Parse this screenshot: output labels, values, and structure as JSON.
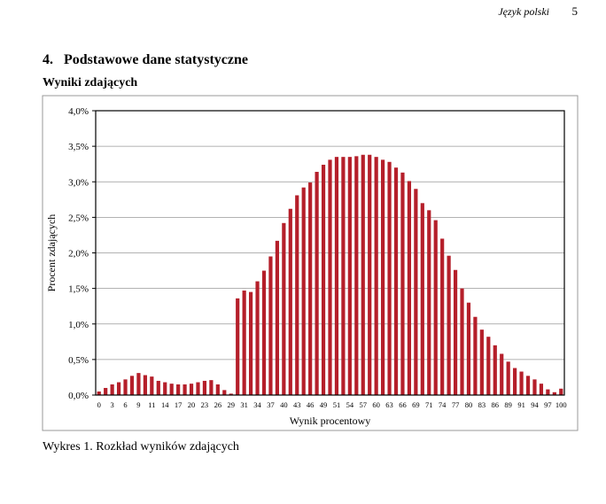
{
  "header": {
    "subject": "Język polski",
    "page": "5"
  },
  "section_title": "4.   Podstawowe dane statystyczne",
  "subsection_title": "Wyniki zdających",
  "caption": "Wykres 1. Rozkład wyników zdających",
  "chart_data": {
    "type": "bar",
    "categories": [
      "0",
      null,
      "3",
      null,
      "6",
      null,
      "9",
      null,
      "11",
      null,
      "14",
      null,
      "17",
      null,
      "20",
      null,
      "23",
      null,
      "26",
      null,
      "29",
      null,
      "31",
      null,
      "34",
      null,
      "37",
      null,
      "40",
      null,
      "43",
      null,
      "46",
      null,
      "49",
      null,
      "51",
      null,
      "54",
      null,
      "57",
      null,
      "60",
      null,
      "63",
      null,
      "66",
      null,
      "69",
      null,
      "71",
      null,
      "74",
      null,
      "77",
      null,
      "80",
      null,
      "83",
      null,
      "86",
      null,
      "89",
      null,
      "91",
      null,
      "94",
      null,
      "97",
      null,
      "100"
    ],
    "values": [
      0.05,
      0.1,
      0.15,
      0.18,
      0.22,
      0.27,
      0.31,
      0.28,
      0.26,
      0.2,
      0.18,
      0.16,
      0.15,
      0.15,
      0.16,
      0.18,
      0.2,
      0.21,
      0.15,
      0.07,
      0.02,
      1.36,
      1.47,
      1.45,
      1.6,
      1.75,
      1.95,
      2.17,
      2.42,
      2.62,
      2.81,
      2.92,
      2.99,
      3.14,
      3.24,
      3.31,
      3.35,
      3.35,
      3.35,
      3.36,
      3.38,
      3.38,
      3.35,
      3.31,
      3.28,
      3.2,
      3.13,
      3.01,
      2.9,
      2.7,
      2.6,
      2.46,
      2.2,
      1.96,
      1.76,
      1.5,
      1.3,
      1.1,
      0.92,
      0.82,
      0.7,
      0.58,
      0.47,
      0.38,
      0.33,
      0.27,
      0.22,
      0.16,
      0.08,
      0.04,
      0.09
    ],
    "color": "#b51f2a",
    "ylim": [
      0,
      4
    ],
    "yticks": [
      {
        "value": 0,
        "label": "0,0%"
      },
      {
        "value": 0.5,
        "label": "0,5%"
      },
      {
        "value": 1,
        "label": "1,0%"
      },
      {
        "value": 1.5,
        "label": "1,5%"
      },
      {
        "value": 2,
        "label": "2,0%"
      },
      {
        "value": 2.5,
        "label": "2,5%"
      },
      {
        "value": 3,
        "label": "3,0%"
      },
      {
        "value": 3.5,
        "label": "3,5%"
      },
      {
        "value": 4,
        "label": "4,0%"
      }
    ],
    "grid": true,
    "xlabel": "Wynik procentowy",
    "ylabel": "Procent zdających"
  }
}
